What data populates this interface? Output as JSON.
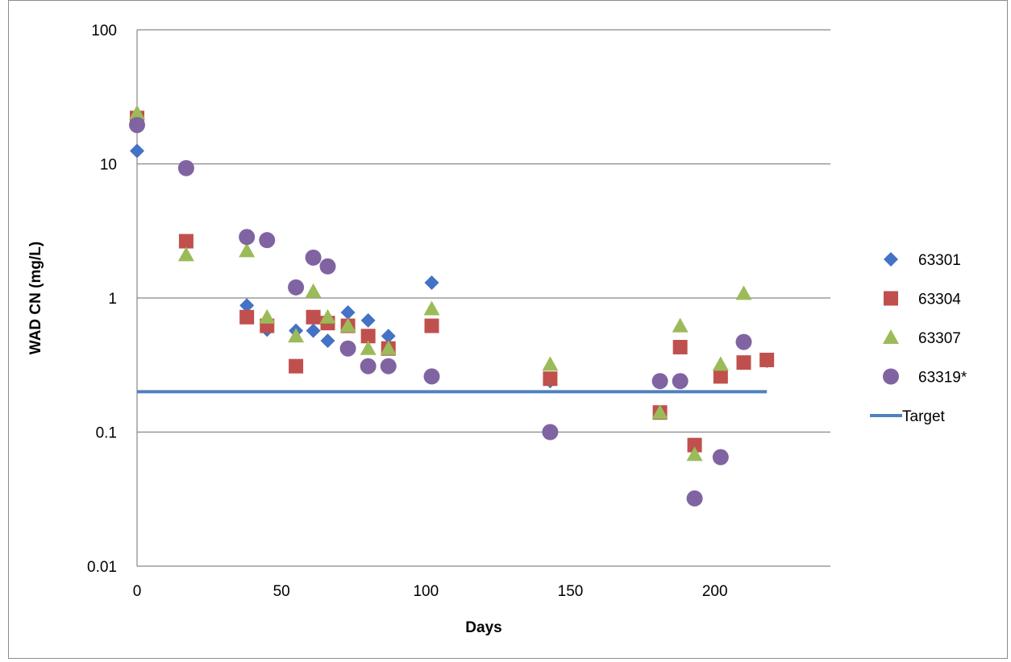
{
  "chart_data": {
    "type": "scatter",
    "title": "",
    "xlabel": "Days",
    "ylabel": "WAD CN (mg/L)",
    "xlim": [
      0,
      240
    ],
    "ylim": [
      0.01,
      100
    ],
    "y_scale": "log",
    "x_ticks": [
      "0",
      "50",
      "100",
      "150",
      "200"
    ],
    "x_tick_values": [
      0,
      50,
      100,
      150,
      200
    ],
    "y_ticks": [
      "0.01",
      "0.1",
      "1",
      "10",
      "100"
    ],
    "y_tick_values": [
      0.01,
      0.1,
      1,
      10,
      100
    ],
    "grid": "horizontal",
    "legend_position": "right",
    "series": [
      {
        "name": "63301",
        "marker": "diamond",
        "color": "#4472C4",
        "points": [
          [
            0,
            12.5
          ],
          [
            38,
            0.88
          ],
          [
            45,
            0.58
          ],
          [
            55,
            0.57
          ],
          [
            61,
            0.57
          ],
          [
            66,
            0.48
          ],
          [
            73,
            0.78
          ],
          [
            80,
            0.68
          ],
          [
            87,
            0.52
          ],
          [
            102,
            1.3
          ],
          [
            143,
            0.24
          ],
          [
            181,
            0.14
          ],
          [
            188,
            0.43
          ],
          [
            193,
            0.08
          ],
          [
            202,
            0.28
          ],
          [
            210,
            0.33
          ],
          [
            218,
            0.34
          ]
        ]
      },
      {
        "name": "63304",
        "marker": "square",
        "color": "#C0504D",
        "points": [
          [
            0,
            22
          ],
          [
            17,
            2.65
          ],
          [
            38,
            0.72
          ],
          [
            45,
            0.62
          ],
          [
            55,
            0.31
          ],
          [
            61,
            0.72
          ],
          [
            66,
            0.65
          ],
          [
            73,
            0.62
          ],
          [
            80,
            0.52
          ],
          [
            87,
            0.42
          ],
          [
            102,
            0.62
          ],
          [
            143,
            0.25
          ],
          [
            181,
            0.14
          ],
          [
            188,
            0.43
          ],
          [
            193,
            0.08
          ],
          [
            202,
            0.26
          ],
          [
            210,
            0.33
          ],
          [
            218,
            0.345
          ]
        ]
      },
      {
        "name": "63307",
        "marker": "triangle",
        "color": "#9BBB59",
        "points": [
          [
            0,
            24
          ],
          [
            17,
            2.1
          ],
          [
            38,
            2.25
          ],
          [
            45,
            0.72
          ],
          [
            55,
            0.52
          ],
          [
            61,
            1.12
          ],
          [
            66,
            0.72
          ],
          [
            73,
            0.62
          ],
          [
            80,
            0.42
          ],
          [
            87,
            0.42
          ],
          [
            102,
            0.83
          ],
          [
            143,
            0.32
          ],
          [
            181,
            0.14
          ],
          [
            188,
            0.62
          ],
          [
            193,
            0.068
          ],
          [
            202,
            0.32
          ],
          [
            210,
            1.08
          ]
        ]
      },
      {
        "name": "63319*",
        "marker": "circle",
        "color": "#8064A2",
        "points": [
          [
            0,
            19.5
          ],
          [
            17,
            9.3
          ],
          [
            38,
            2.85
          ],
          [
            45,
            2.7
          ],
          [
            55,
            1.2
          ],
          [
            61,
            2.0
          ],
          [
            66,
            1.72
          ],
          [
            73,
            0.42
          ],
          [
            80,
            0.31
          ],
          [
            87,
            0.31
          ],
          [
            102,
            0.26
          ],
          [
            143,
            0.1
          ],
          [
            181,
            0.24
          ],
          [
            188,
            0.24
          ],
          [
            193,
            0.032
          ],
          [
            202,
            0.065
          ],
          [
            210,
            0.47
          ]
        ]
      },
      {
        "name": "Target",
        "marker": "line",
        "color": "#4F81BD",
        "points": [
          [
            0,
            0.2
          ],
          [
            218,
            0.2
          ]
        ]
      }
    ]
  }
}
